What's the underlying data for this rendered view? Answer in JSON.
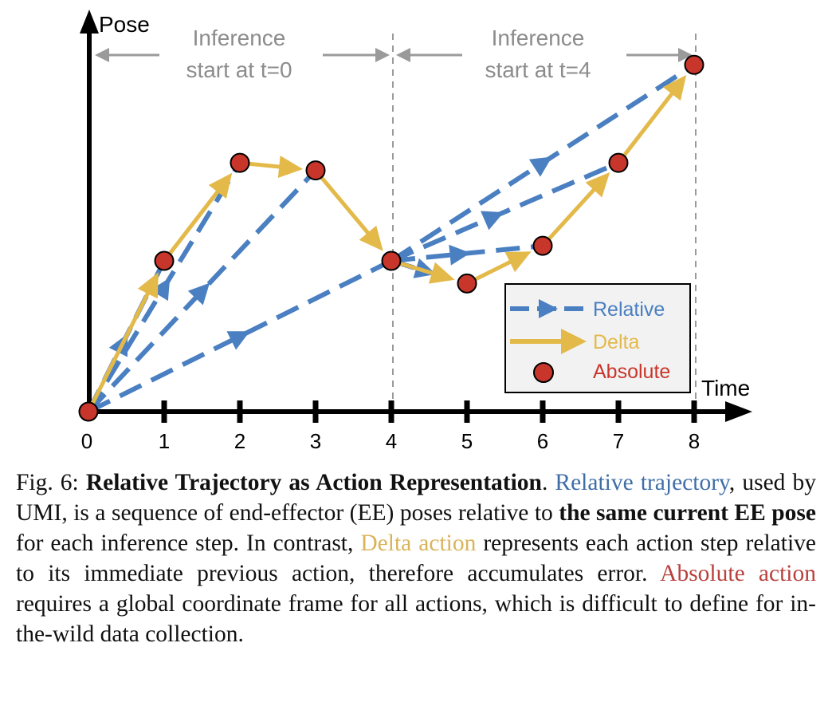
{
  "figure": {
    "y_axis_label": "Pose",
    "x_axis_label": "Time",
    "annotation_left_line1": "Inference",
    "annotation_left_line2": "start at t=0",
    "annotation_right_line1": "Inference",
    "annotation_right_line2": "start at t=4",
    "legend": {
      "relative": "Relative",
      "delta": "Delta",
      "absolute": "Absolute"
    },
    "ticks": [
      "0",
      "1",
      "2",
      "3",
      "4",
      "5",
      "6",
      "7",
      "8"
    ]
  },
  "colors": {
    "relative": "#4a7fc1",
    "delta": "#e3b94a",
    "absolute": "#c8362b",
    "guide": "#9a9a9a"
  },
  "chart_data": {
    "type": "line",
    "xlabel": "Time",
    "ylabel": "Pose",
    "x": [
      0,
      1,
      2,
      3,
      4,
      5,
      6,
      7,
      8
    ],
    "absolute_pose": [
      0,
      2.0,
      3.3,
      3.2,
      2.0,
      1.7,
      2.2,
      3.3,
      4.6
    ],
    "inference_starts": [
      0,
      4
    ],
    "series": [
      {
        "name": "Relative",
        "style": "dashed-arrow",
        "from_anchor": [
          [
            0,
            1
          ],
          [
            0,
            2
          ],
          [
            0,
            3
          ],
          [
            0,
            4
          ],
          [
            4,
            5
          ],
          [
            4,
            6
          ],
          [
            4,
            7
          ],
          [
            4,
            8
          ]
        ]
      },
      {
        "name": "Delta",
        "style": "solid-arrow",
        "path": [
          0,
          1,
          2,
          3,
          4,
          5,
          6,
          7,
          8
        ]
      },
      {
        "name": "Absolute",
        "style": "marker",
        "points": [
          0,
          1,
          2,
          3,
          4,
          5,
          6,
          7,
          8
        ]
      }
    ]
  },
  "caption": {
    "fig_label": "Fig. 6: ",
    "title": "Relative Trajectory as Action Representation",
    "p1": ". ",
    "rel": "Relative trajectory",
    "p2": ", used by UMI, is a sequence of end-effector (EE) poses relative to ",
    "bold2": "the same current EE pose",
    "p3": " for each inference step. In contrast, ",
    "delta": "Delta action",
    "p4": " represents each action step relative to its immediate previous action, therefore accumulates error. ",
    "abs": "Absolute action",
    "p5": " requires a global coordinate frame for all actions, which is difficult to define for in-the-wild data collection."
  }
}
